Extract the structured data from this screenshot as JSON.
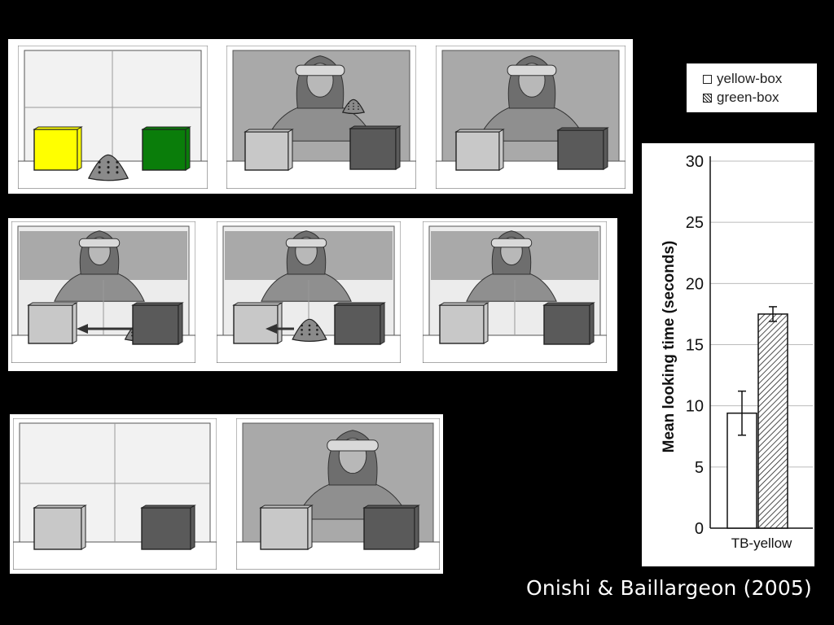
{
  "legend": {
    "items": [
      {
        "label": "yellow-box",
        "pattern": "open"
      },
      {
        "label": "green-box",
        "pattern": "hatched"
      }
    ]
  },
  "credit": "Onishi & Baillargeon (2005)",
  "colors": {
    "background": "#000000",
    "yellow": "#ffff00",
    "green": "#0a7d0a",
    "light_box": "#c8c8c8",
    "dark_box": "#5a5a5a"
  },
  "illustration": {
    "description_icons": [
      "experimenter-icon",
      "watermelon-slice-icon",
      "box-icon",
      "arrow-icon"
    ]
  },
  "chart_data": {
    "type": "bar",
    "categories": [
      "TB-yellow"
    ],
    "series": [
      {
        "name": "yellow-box",
        "values": [
          9.4
        ],
        "error": [
          1.8
        ],
        "pattern": "open"
      },
      {
        "name": "green-box",
        "values": [
          17.5
        ],
        "error": [
          0.6
        ],
        "pattern": "hatched"
      }
    ],
    "ylabel": "Mean looking time (seconds)",
    "ylim": [
      0,
      30
    ],
    "yticks": [
      0,
      5,
      10,
      15,
      20,
      25,
      30
    ],
    "grid": true
  }
}
